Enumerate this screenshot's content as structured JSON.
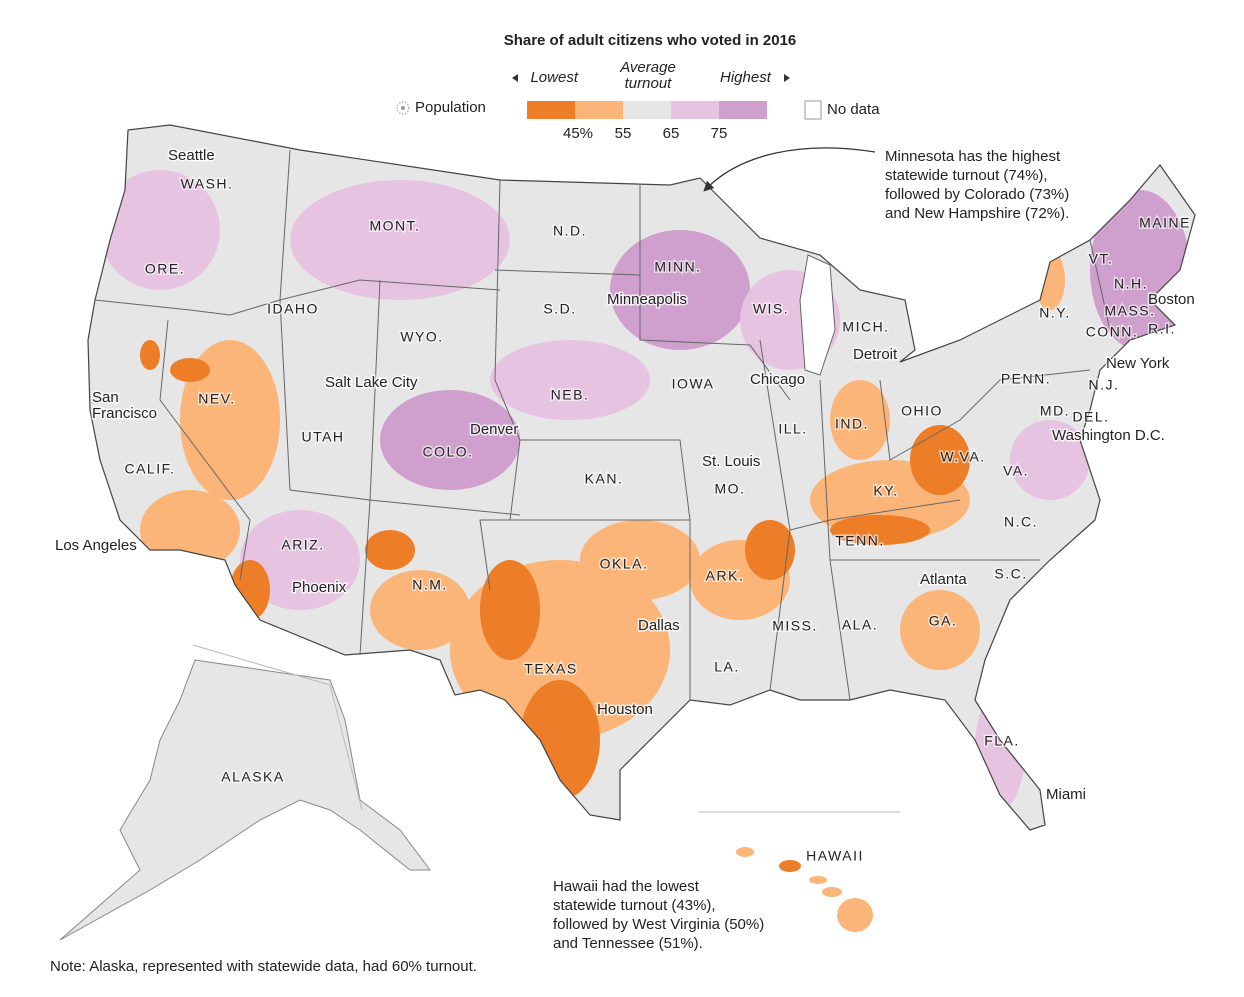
{
  "title": "Share of adult citizens who voted in 2016",
  "legend": {
    "lowest": "Lowest",
    "average": "Average turnout",
    "highest": "Highest",
    "population": "Population",
    "no_data": "No data",
    "ticks": [
      "45%",
      "55",
      "65",
      "75"
    ],
    "colors": [
      "#ee7d28",
      "#fbb578",
      "#e6e6e6",
      "#e7c3e2",
      "#cf9fcd"
    ]
  },
  "states": [
    "WASH.",
    "ORE.",
    "IDAHO",
    "MONT.",
    "WYO.",
    "N.D.",
    "S.D.",
    "NEB.",
    "COLO.",
    "UTAH",
    "NEV.",
    "CALIF.",
    "ARIZ.",
    "N.M.",
    "KAN.",
    "OKLA.",
    "TEXAS",
    "MINN.",
    "IOWA",
    "MO.",
    "ARK.",
    "LA.",
    "WIS.",
    "ILL.",
    "MICH.",
    "IND.",
    "OHIO",
    "KY.",
    "TENN.",
    "MISS.",
    "ALA.",
    "GA.",
    "FLA.",
    "S.C.",
    "N.C.",
    "VA.",
    "W.VA.",
    "PENN.",
    "N.Y.",
    "MAINE",
    "VT.",
    "N.H.",
    "MASS.",
    "CONN.",
    "R.I.",
    "N.J.",
    "DEL.",
    "MD.",
    "ALASKA",
    "HAWAII"
  ],
  "cities": [
    "Seattle",
    "Minneapolis",
    "Boston",
    "Detroit",
    "Chicago",
    "New York",
    "Salt Lake City",
    "San Francisco",
    "Denver",
    "St. Louis",
    "Washington D.C.",
    "Los Angeles",
    "Phoenix",
    "Atlanta",
    "Dallas",
    "Houston",
    "Miami"
  ],
  "annotations": [
    {
      "lines": [
        "Minnesota has the highest",
        "statewide turnout (74%),",
        "followed by Colorado (73%)",
        "and New Hampshire (72%)."
      ]
    },
    {
      "lines": [
        "Hawaii had the lowest",
        "statewide turnout (43%),",
        "followed by West Virginia (50%)",
        "and Tennessee (51%)."
      ]
    }
  ],
  "note": "Note: Alaska, represented with statewide data, had 60% turnout."
}
